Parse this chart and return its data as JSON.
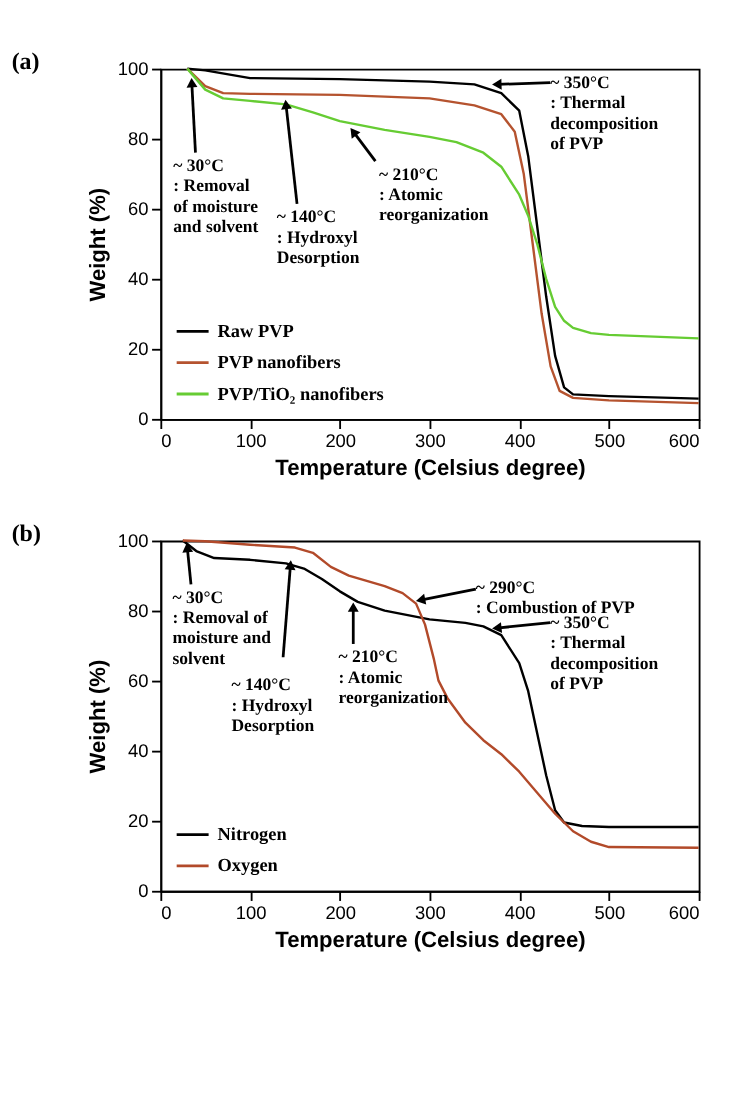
{
  "chart_data": [
    {
      "type": "line",
      "title": "(a)",
      "xlabel": "Temperature (Celsius degree)",
      "ylabel": "Weight (%)",
      "xlim": [
        0,
        600
      ],
      "ylim": [
        0,
        100
      ],
      "xticks": [
        0,
        100,
        200,
        300,
        400,
        500,
        600
      ],
      "yticks": [
        0,
        20,
        40,
        60,
        80,
        100
      ],
      "grid": false,
      "legend": "bottom left",
      "line_style": "solid",
      "marker": "none",
      "series": [
        {
          "name": "Raw PVP",
          "color": "#000000",
          "x": [
            30,
            50,
            100,
            200,
            300,
            350,
            380,
            400,
            410,
            420,
            430,
            440,
            450,
            460,
            500,
            600
          ],
          "values": [
            100,
            99.5,
            97.3,
            97,
            96.3,
            95.5,
            93,
            88,
            75,
            55,
            35,
            18,
            9,
            7,
            6.5,
            5.8
          ]
        },
        {
          "name": "PVP nanofibers",
          "color": "#b5532f",
          "x": [
            30,
            50,
            70,
            100,
            200,
            300,
            350,
            380,
            395,
            405,
            415,
            425,
            435,
            445,
            460,
            500,
            600
          ],
          "values": [
            100,
            95,
            93,
            92.8,
            92.5,
            91.5,
            89.5,
            87,
            82,
            70,
            50,
            30,
            15,
            8,
            6,
            5.3,
            4.5
          ]
        },
        {
          "name": "PVP/TiO₂ nanofibers",
          "color": "#66cc33",
          "x": [
            30,
            50,
            70,
            100,
            140,
            170,
            200,
            250,
            300,
            330,
            360,
            380,
            400,
            410,
            420,
            430,
            440,
            450,
            460,
            480,
            500,
            600
          ],
          "values": [
            100,
            94,
            91.5,
            90.8,
            89.8,
            87.5,
            85,
            82.5,
            80.5,
            79,
            76,
            72,
            64,
            58,
            50,
            40,
            32,
            28,
            26,
            24.5,
            24,
            23
          ]
        }
      ],
      "annotations": [
        {
          "text": "~ 30°C\n: Removal\nof moisture\nand solvent",
          "x": 35,
          "y": 96
        },
        {
          "text": "~ 140°C\n: Hydroxyl\nDesorption",
          "x": 140,
          "y": 89.8
        },
        {
          "text": "~ 210°C\n: Atomic\nreorganization",
          "x": 215,
          "y": 82
        },
        {
          "text": "~ 350°C\n: Thermal\ndecomposition\nof PVP",
          "x": 375,
          "y": 95.5
        }
      ]
    },
    {
      "type": "line",
      "title": "(b)",
      "xlabel": "Temperature (Celsius degree)",
      "ylabel": "Weight (%)",
      "xlim": [
        0,
        600
      ],
      "ylim": [
        0,
        100
      ],
      "xticks": [
        0,
        100,
        200,
        300,
        400,
        500,
        600
      ],
      "yticks": [
        0,
        20,
        40,
        60,
        80,
        100
      ],
      "grid": false,
      "legend": "bottom left",
      "line_style": "solid",
      "marker": "none",
      "series": [
        {
          "name": "Nitrogen",
          "color": "#000000",
          "x": [
            25,
            40,
            60,
            100,
            140,
            160,
            180,
            200,
            220,
            250,
            280,
            300,
            340,
            360,
            380,
            400,
            410,
            420,
            430,
            440,
            450,
            470,
            500,
            600
          ],
          "values": [
            100,
            97,
            95,
            94.5,
            93.5,
            92,
            89,
            85.5,
            82.5,
            80,
            78.5,
            77.5,
            76.5,
            75.5,
            73,
            65,
            57,
            45,
            33,
            23,
            19.5,
            18.5,
            18.2,
            18.2
          ]
        },
        {
          "name": "Oxygen",
          "color": "#b24a2a",
          "x": [
            25,
            50,
            100,
            150,
            170,
            190,
            210,
            250,
            270,
            285,
            295,
            305,
            310,
            320,
            340,
            360,
            380,
            400,
            420,
            440,
            460,
            480,
            500,
            600
          ],
          "values": [
            100,
            99.8,
            98.8,
            98,
            96.5,
            92.5,
            90,
            87,
            85,
            82,
            76,
            66,
            60,
            55,
            48,
            43,
            39,
            34,
            28,
            22,
            17,
            14,
            12.5,
            12.3
          ]
        }
      ],
      "annotations": [
        {
          "text": "~ 30°C\n: Removal of\nmoisture and\nsolvent",
          "x": 30,
          "y": 98
        },
        {
          "text": "~ 140°C\n: Hydroxyl\nDesorption",
          "x": 145,
          "y": 93
        },
        {
          "text": "~ 210°C\n: Atomic\nreorganization",
          "x": 215,
          "y": 81
        },
        {
          "text": "~ 290°C\n: Combustion of PVP",
          "x": 290,
          "y": 83
        },
        {
          "text": "~ 350°C\n: Thermal\ndecomposition\nof PVP",
          "x": 375,
          "y": 75
        }
      ]
    }
  ]
}
